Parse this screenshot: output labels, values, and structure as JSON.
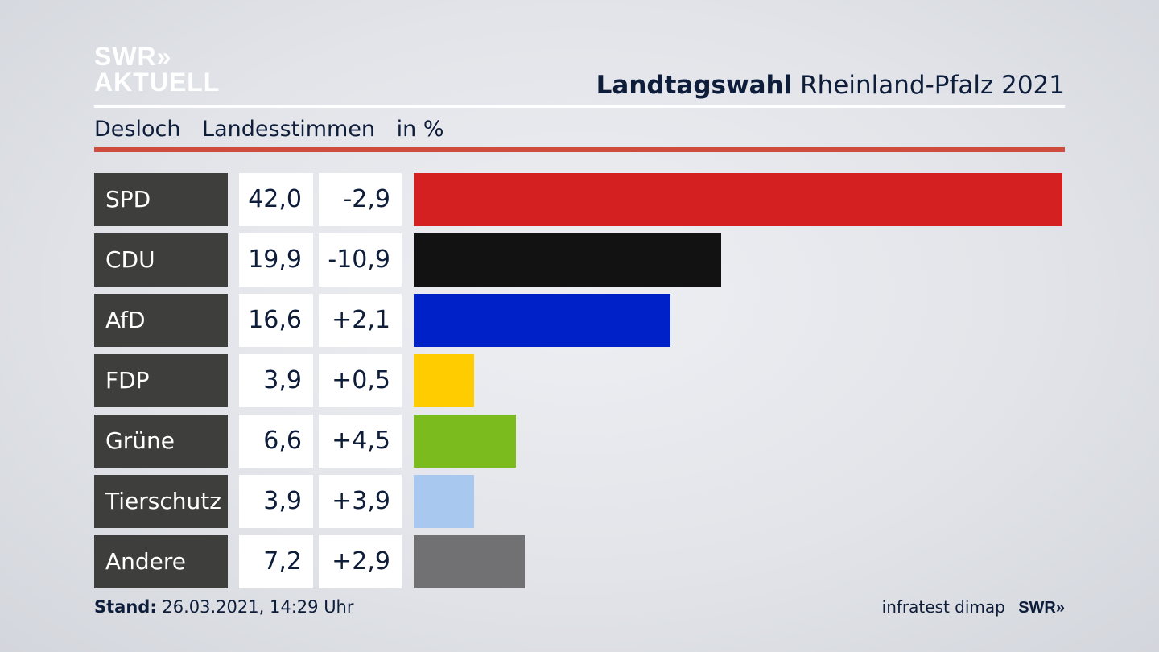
{
  "header": {
    "logo_line1": "SWR»",
    "logo_line2": "AKTUELL",
    "title_bold": "Landtagswahl",
    "title_rest": "Rheinland-Pfalz 2021",
    "subtitle_place": "Desloch",
    "subtitle_kind": "Landesstimmen",
    "subtitle_unit": "in %"
  },
  "colors": {
    "accent_rule": "#cf4c3c",
    "label_bg": "#3e3e3c"
  },
  "chart_data": {
    "type": "bar",
    "orientation": "horizontal",
    "categories": [
      "SPD",
      "CDU",
      "AfD",
      "FDP",
      "Grüne",
      "Tierschutz",
      "Andere"
    ],
    "values": [
      42.0,
      19.9,
      16.6,
      3.9,
      6.6,
      3.9,
      7.2
    ],
    "value_labels": [
      "42,0",
      "19,9",
      "16,6",
      "3,9",
      "6,6",
      "3,9",
      "7,2"
    ],
    "changes": [
      -2.9,
      -10.9,
      2.1,
      0.5,
      4.5,
      3.9,
      2.9
    ],
    "change_labels": [
      "-2,9",
      "-10,9",
      "+2,1",
      "+0,5",
      "+4,5",
      "+3,9",
      "+2,9"
    ],
    "colors": [
      "#d42020",
      "#121212",
      "#0020c8",
      "#ffcc00",
      "#7cbb1e",
      "#a9c8ef",
      "#717173"
    ],
    "xlim": [
      0,
      42.0
    ]
  },
  "footer": {
    "stand_label": "Stand:",
    "stand_value": "26.03.2021, 14:29 Uhr",
    "source": "infratest dimap",
    "brand": "SWR»"
  }
}
